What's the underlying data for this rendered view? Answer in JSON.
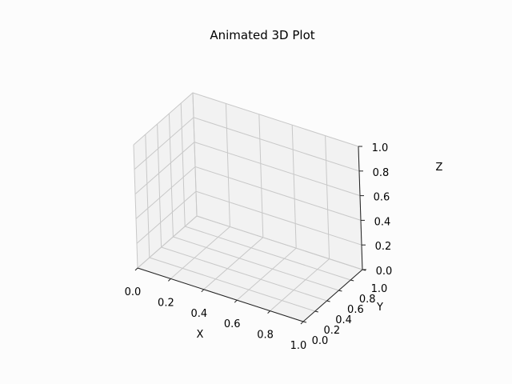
{
  "chart_data": {
    "type": "scatter",
    "title": "Animated 3D Plot",
    "xlabel": "X",
    "ylabel": "Y",
    "zlabel": "Z",
    "xlim": [
      0,
      1
    ],
    "ylim": [
      0,
      1
    ],
    "zlim": [
      0,
      1
    ],
    "x_ticks": [
      "0.0",
      "0.2",
      "0.4",
      "0.6",
      "0.8",
      "1.0"
    ],
    "y_ticks": [
      "0.0",
      "0.2",
      "0.4",
      "0.6",
      "0.8",
      "1.0"
    ],
    "z_ticks": [
      "0.0",
      "0.2",
      "0.4",
      "0.6",
      "0.8",
      "1.0"
    ],
    "grid": true,
    "series": []
  },
  "colors": {
    "background": "#fcfcfc",
    "pane": "#f2f2f2",
    "grid": "#c8c8c8"
  }
}
